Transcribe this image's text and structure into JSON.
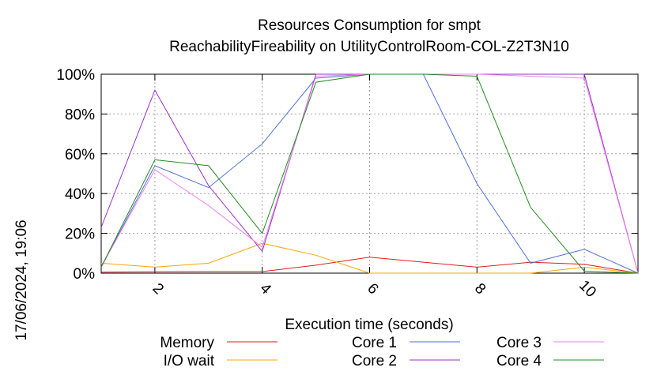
{
  "chart_data": {
    "type": "line",
    "title_line1": "Resources Consumption for smpt",
    "title_line2": "ReachabilityFireability on UtilityControlRoom-COL-Z2T3N10",
    "xlabel": "Execution time (seconds)",
    "ylabel": "",
    "side_label": "17/06/2024, 19:06",
    "xlim": [
      1,
      11
    ],
    "ylim": [
      0,
      100
    ],
    "x_ticks": [
      2,
      4,
      6,
      8,
      10
    ],
    "y_ticks": [
      0,
      20,
      40,
      60,
      80,
      100
    ],
    "y_tick_labels": [
      "0%",
      "20%",
      "40%",
      "60%",
      "80%",
      "100%"
    ],
    "grid": true,
    "legend_position": "bottom",
    "x": [
      1,
      2,
      3,
      4,
      5,
      6,
      7,
      8,
      9,
      10,
      11
    ],
    "series": [
      {
        "name": "Memory",
        "color": "#e41a1c",
        "values": [
          0.5,
          0.7,
          0.8,
          0.8,
          4,
          8,
          5.5,
          3,
          5.5,
          4.5,
          0
        ]
      },
      {
        "name": "I/O wait",
        "color": "#ffa500",
        "values": [
          5,
          3,
          5,
          15,
          9,
          0,
          0,
          0,
          0,
          3,
          0
        ]
      },
      {
        "name": "Core 1",
        "color": "#4f6fd6",
        "values": [
          3,
          54,
          43,
          65,
          98,
          100,
          100,
          45,
          5,
          12,
          0
        ]
      },
      {
        "name": "Core 2",
        "color": "#9a32cd",
        "values": [
          23,
          92,
          44,
          11,
          100,
          100,
          100,
          100,
          100,
          100,
          0
        ]
      },
      {
        "name": "Core 3",
        "color": "#ee82ee",
        "values": [
          3,
          52,
          34,
          13,
          99,
          100,
          100,
          100,
          99,
          98,
          0
        ]
      },
      {
        "name": "Core 4",
        "color": "#228b22",
        "values": [
          3,
          57,
          54,
          20,
          96,
          100,
          100,
          99,
          33,
          1,
          0
        ]
      }
    ]
  }
}
